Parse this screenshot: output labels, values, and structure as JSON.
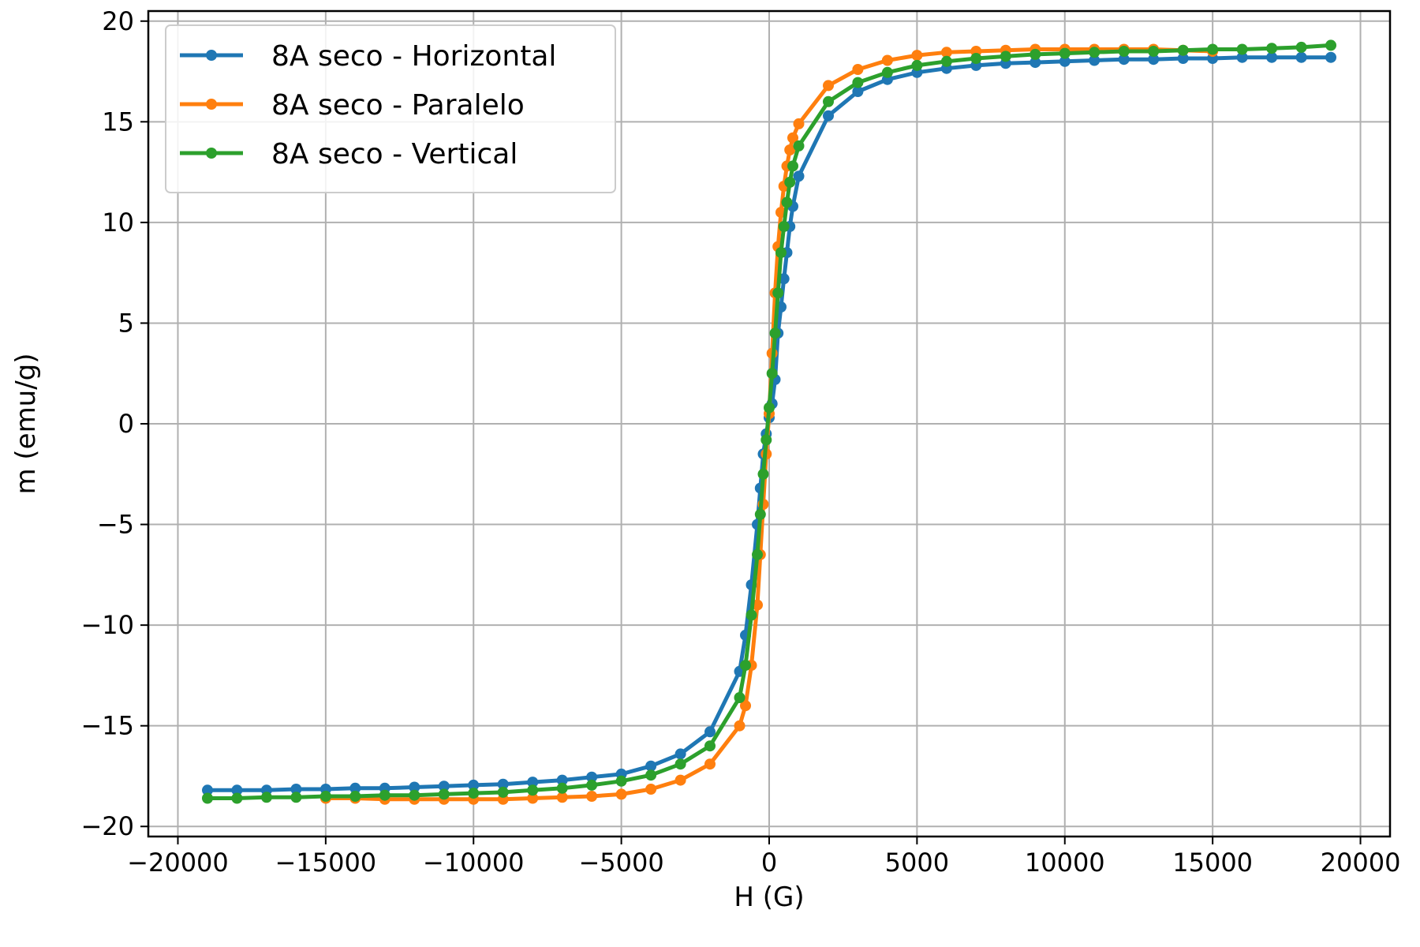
{
  "chart_data": {
    "type": "line",
    "title": "",
    "xlabel": "H (G)",
    "ylabel": "m (emu/g)",
    "xlim": [
      -21000,
      21000
    ],
    "ylim": [
      -20.5,
      20.5
    ],
    "xticks": [
      -20000,
      -15000,
      -10000,
      -5000,
      0,
      5000,
      10000,
      15000,
      20000
    ],
    "xtick_labels": [
      "−20000",
      "−15000",
      "−10000",
      "−5000",
      "0",
      "5000",
      "10000",
      "15000",
      "20000"
    ],
    "yticks": [
      -20,
      -15,
      -10,
      -5,
      0,
      5,
      10,
      15,
      20
    ],
    "ytick_labels": [
      "−20",
      "−15",
      "−10",
      "−5",
      "0",
      "5",
      "10",
      "15",
      "20"
    ],
    "grid": true,
    "legend_position": "top-left",
    "series": [
      {
        "name": "8A seco - Horizontal",
        "color": "#1f77b4",
        "x": [
          -19000,
          -18000,
          -17000,
          -16000,
          -15000,
          -14000,
          -13000,
          -12000,
          -11000,
          -10000,
          -9000,
          -8000,
          -7000,
          -6000,
          -5000,
          -4000,
          -3000,
          -2000,
          -1000,
          -800,
          -600,
          -400,
          -300,
          -200,
          -100,
          0,
          100,
          200,
          300,
          400,
          500,
          600,
          700,
          800,
          1000,
          2000,
          3000,
          4000,
          5000,
          6000,
          7000,
          8000,
          9000,
          10000,
          11000,
          12000,
          13000,
          14000,
          15000,
          16000,
          17000,
          18000,
          19000
        ],
        "y": [
          -18.2,
          -18.2,
          -18.2,
          -18.15,
          -18.15,
          -18.1,
          -18.1,
          -18.05,
          -18.0,
          -17.95,
          -17.9,
          -17.8,
          -17.7,
          -17.55,
          -17.4,
          -17.0,
          -16.4,
          -15.3,
          -12.3,
          -10.5,
          -8.0,
          -5.0,
          -3.2,
          -1.5,
          -0.5,
          0.3,
          1.0,
          2.2,
          4.5,
          5.8,
          7.2,
          8.5,
          9.8,
          10.8,
          12.3,
          15.3,
          16.5,
          17.1,
          17.45,
          17.65,
          17.8,
          17.9,
          17.95,
          18.0,
          18.05,
          18.1,
          18.1,
          18.15,
          18.15,
          18.2,
          18.2,
          18.2,
          18.2
        ]
      },
      {
        "name": "8A seco - Paralelo",
        "color": "#ff7f0e",
        "x": [
          -15000,
          -14000,
          -13000,
          -12000,
          -11000,
          -10000,
          -9000,
          -8000,
          -7000,
          -6000,
          -5000,
          -4000,
          -3000,
          -2000,
          -1000,
          -800,
          -600,
          -400,
          -300,
          -200,
          -100,
          0,
          100,
          200,
          300,
          400,
          500,
          600,
          700,
          800,
          1000,
          2000,
          3000,
          4000,
          5000,
          6000,
          7000,
          8000,
          9000,
          10000,
          11000,
          12000,
          13000,
          14000,
          15000
        ],
        "y": [
          -18.6,
          -18.6,
          -18.65,
          -18.65,
          -18.65,
          -18.65,
          -18.65,
          -18.6,
          -18.55,
          -18.5,
          -18.4,
          -18.15,
          -17.7,
          -16.9,
          -15.0,
          -14.0,
          -12.0,
          -9.0,
          -6.5,
          -4.0,
          -1.5,
          0.5,
          3.5,
          6.5,
          8.8,
          10.5,
          11.8,
          12.8,
          13.6,
          14.2,
          14.9,
          16.8,
          17.6,
          18.05,
          18.3,
          18.45,
          18.5,
          18.55,
          18.6,
          18.6,
          18.6,
          18.6,
          18.6,
          18.55,
          18.5
        ]
      },
      {
        "name": "8A seco - Vertical",
        "color": "#2ca02c",
        "x": [
          -19000,
          -18000,
          -17000,
          -16000,
          -15000,
          -14000,
          -13000,
          -12000,
          -11000,
          -10000,
          -9000,
          -8000,
          -7000,
          -6000,
          -5000,
          -4000,
          -3000,
          -2000,
          -1000,
          -800,
          -600,
          -400,
          -300,
          -200,
          -100,
          0,
          100,
          200,
          300,
          400,
          500,
          600,
          700,
          800,
          1000,
          2000,
          3000,
          4000,
          5000,
          6000,
          7000,
          8000,
          9000,
          10000,
          11000,
          12000,
          13000,
          14000,
          15000,
          16000,
          17000,
          18000,
          19000
        ],
        "y": [
          -18.6,
          -18.6,
          -18.55,
          -18.55,
          -18.5,
          -18.5,
          -18.45,
          -18.45,
          -18.4,
          -18.35,
          -18.3,
          -18.2,
          -18.1,
          -17.95,
          -17.75,
          -17.45,
          -16.9,
          -16.0,
          -13.6,
          -12.0,
          -9.5,
          -6.5,
          -4.5,
          -2.5,
          -0.8,
          0.8,
          2.5,
          4.5,
          6.5,
          8.5,
          9.8,
          11.0,
          12.0,
          12.8,
          13.8,
          16.0,
          16.95,
          17.45,
          17.8,
          18.0,
          18.15,
          18.25,
          18.35,
          18.4,
          18.45,
          18.5,
          18.5,
          18.55,
          18.6,
          18.6,
          18.65,
          18.7,
          18.8
        ]
      }
    ]
  }
}
